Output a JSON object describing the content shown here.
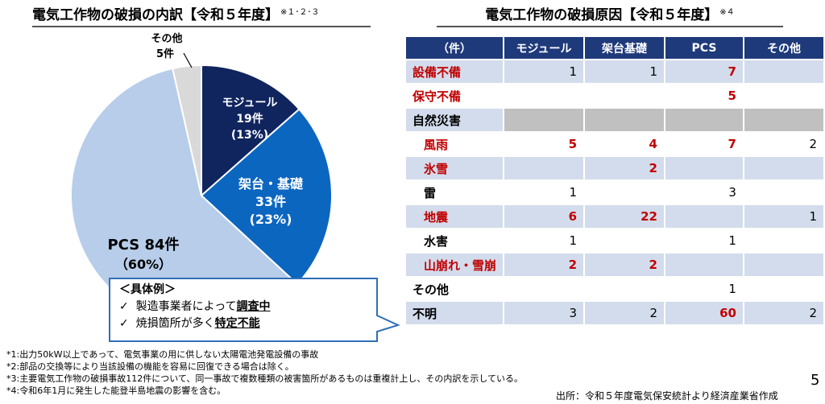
{
  "left_title": {
    "text": "電気工作物の破損の内訳【令和５年度】",
    "note": "※１･２･３"
  },
  "right_title": {
    "text": "電気工作物の破損原因【令和５年度】",
    "note": "※４"
  },
  "pie": {
    "segments": [
      {
        "name": "モジュール",
        "count": "19件",
        "pct": "(13%)",
        "value": 19,
        "color": "#10245e"
      },
      {
        "name": "架台・基礎",
        "count": "33件",
        "pct": "(23%)",
        "value": 33,
        "color": "#0b66c0"
      },
      {
        "name": "PCS 84件",
        "count": "",
        "pct": "（60%）",
        "value": 84,
        "color": "#b7cdea"
      },
      {
        "name": "その他",
        "count": "5件",
        "pct": "",
        "value": 5,
        "color": "#d9d9d9"
      }
    ],
    "callout_title": "＜具体例＞",
    "callout_lines": [
      {
        "check": "✓",
        "pre": "製造事業者によって",
        "em": "調査中"
      },
      {
        "check": "✓",
        "pre": "焼損箇所が多く",
        "em": "特定不能"
      }
    ]
  },
  "table": {
    "headers": [
      "（件）",
      "モジュール",
      "架台基礎",
      "PCS",
      "その他"
    ],
    "rows": [
      {
        "label": "設備不備",
        "red": true,
        "indent": false,
        "grey": false,
        "cells": [
          {
            "v": "1",
            "r": false
          },
          {
            "v": "1",
            "r": false
          },
          {
            "v": "7",
            "r": true
          },
          {
            "v": "",
            "r": false
          }
        ]
      },
      {
        "label": "保守不備",
        "red": true,
        "indent": false,
        "grey": false,
        "cells": [
          {
            "v": "",
            "r": false
          },
          {
            "v": "",
            "r": false
          },
          {
            "v": "5",
            "r": true
          },
          {
            "v": "",
            "r": false
          }
        ]
      },
      {
        "label": "自然災害",
        "red": false,
        "indent": false,
        "grey": true,
        "cells": [
          {
            "v": "",
            "r": false
          },
          {
            "v": "",
            "r": false
          },
          {
            "v": "",
            "r": false
          },
          {
            "v": "",
            "r": false
          }
        ]
      },
      {
        "label": "風雨",
        "red": true,
        "indent": true,
        "grey": false,
        "cells": [
          {
            "v": "5",
            "r": true
          },
          {
            "v": "4",
            "r": true
          },
          {
            "v": "7",
            "r": true
          },
          {
            "v": "2",
            "r": false
          }
        ]
      },
      {
        "label": "氷雪",
        "red": true,
        "indent": true,
        "grey": false,
        "cells": [
          {
            "v": "",
            "r": false
          },
          {
            "v": "2",
            "r": true
          },
          {
            "v": "",
            "r": false
          },
          {
            "v": "",
            "r": false
          }
        ]
      },
      {
        "label": "雷",
        "red": false,
        "indent": true,
        "grey": false,
        "cells": [
          {
            "v": "1",
            "r": false
          },
          {
            "v": "",
            "r": false
          },
          {
            "v": "3",
            "r": false
          },
          {
            "v": "",
            "r": false
          }
        ]
      },
      {
        "label": "地震",
        "red": true,
        "indent": true,
        "grey": false,
        "cells": [
          {
            "v": "6",
            "r": true
          },
          {
            "v": "22",
            "r": true
          },
          {
            "v": "",
            "r": false
          },
          {
            "v": "1",
            "r": false
          }
        ]
      },
      {
        "label": "水害",
        "red": false,
        "indent": true,
        "grey": false,
        "cells": [
          {
            "v": "1",
            "r": false
          },
          {
            "v": "",
            "r": false
          },
          {
            "v": "1",
            "r": false
          },
          {
            "v": "",
            "r": false
          }
        ]
      },
      {
        "label": "山崩れ・雪崩",
        "red": true,
        "indent": true,
        "grey": false,
        "cells": [
          {
            "v": "2",
            "r": true
          },
          {
            "v": "2",
            "r": true
          },
          {
            "v": "",
            "r": false
          },
          {
            "v": "",
            "r": false
          }
        ]
      },
      {
        "label": "その他",
        "red": false,
        "indent": false,
        "grey": false,
        "cells": [
          {
            "v": "",
            "r": false
          },
          {
            "v": "",
            "r": false
          },
          {
            "v": "1",
            "r": false
          },
          {
            "v": "",
            "r": false
          }
        ]
      },
      {
        "label": "不明",
        "red": false,
        "indent": false,
        "grey": false,
        "cells": [
          {
            "v": "3",
            "r": false
          },
          {
            "v": "2",
            "r": false
          },
          {
            "v": "60",
            "r": true
          },
          {
            "v": "2",
            "r": false
          }
        ]
      }
    ]
  },
  "notes": [
    "*1:出力50kW以上であって、電気事業の用に供しない太陽電池発電設備の事故",
    "*2:部品の交換等により当該設備の機能を容易に回復できる場合は除く。",
    "*3:主要電気工作物の破損事故112件について、同一事故で複数種類の被害箇所があるものは重複計上し、その内訳を示している。",
    "*4:令和6年1月に発生した能登半島地震の影響を含む。"
  ],
  "source": "出所：令和５年度電気保安統計より経済産業省作成",
  "page_number": "5"
}
